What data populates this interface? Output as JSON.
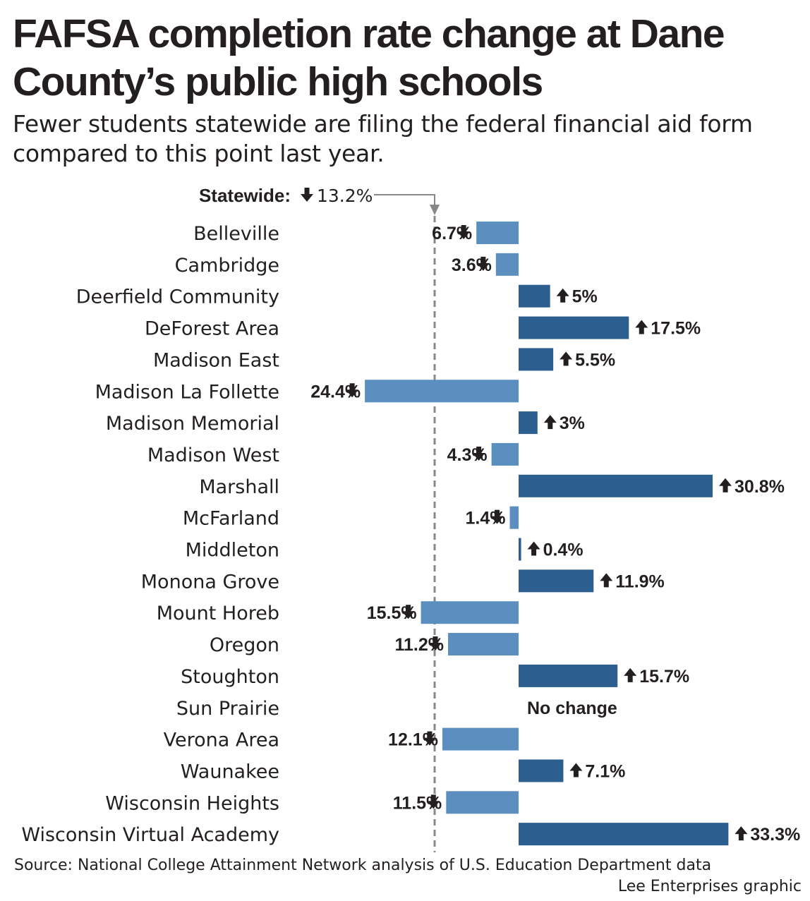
{
  "title": "FAFSA completion rate change at Dane County’s public high schools",
  "subtitle": "Fewer students statewide are filing the federal financial aid form compared to this point last year.",
  "source": "Source: National College Attainment Network analysis of U.S. Education Department data",
  "credit": "Lee Enterprises graphic",
  "colors": {
    "decrease": "#5b8fbf",
    "increase": "#2c5f8f",
    "reference": "#888888",
    "text": "#231f20"
  },
  "chart_data": {
    "type": "bar",
    "orientation": "horizontal",
    "units": "percent change",
    "reference": {
      "label": "Statewide:",
      "value_label": "13.2%",
      "value": -13.2,
      "direction": "down"
    },
    "categories": [
      "Belleville",
      "Cambridge",
      "Deerfield Community",
      "DeForest Area",
      "Madison East",
      "Madison La Follette",
      "Madison Memorial",
      "Madison West",
      "Marshall",
      "McFarland",
      "Middleton",
      "Monona Grove",
      "Mount Horeb",
      "Oregon",
      "Stoughton",
      "Sun Prairie",
      "Verona Area",
      "Waunakee",
      "Wisconsin Heights",
      "Wisconsin Virtual Academy"
    ],
    "values": [
      -6.7,
      -3.6,
      5,
      17.5,
      5.5,
      -24.4,
      3,
      -4.3,
      30.8,
      -1.4,
      0.4,
      11.9,
      -15.5,
      -11.2,
      15.7,
      0,
      -12.1,
      7.1,
      -11.5,
      33.3
    ],
    "labels": [
      "6.7%",
      "3.6%",
      "5%",
      "17.5%",
      "5.5%",
      "24.4%",
      "3%",
      "4.3%",
      "30.8%",
      "1.4%",
      "0.4%",
      "11.9%",
      "15.5%",
      "11.2%",
      "15.7%",
      "No change",
      "12.1%",
      "7.1%",
      "11.5%",
      "33.3%"
    ]
  }
}
